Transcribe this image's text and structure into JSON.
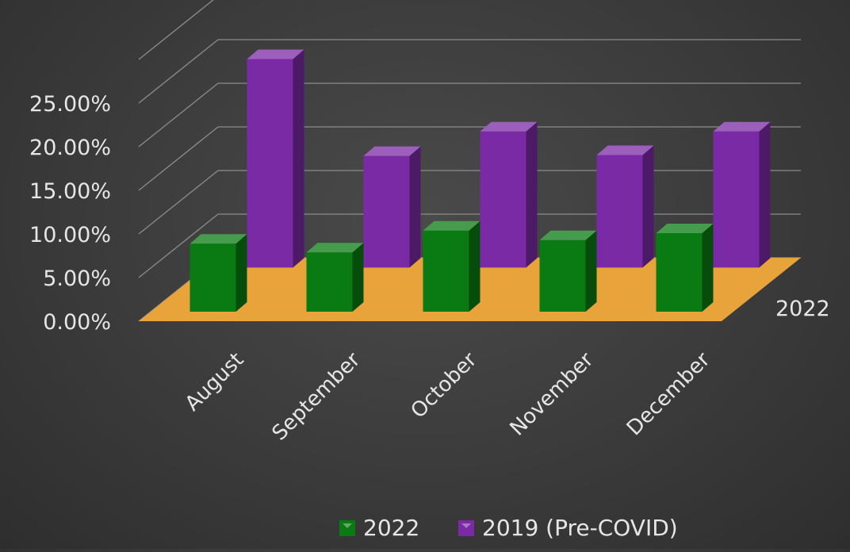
{
  "chart_data": {
    "type": "bar",
    "subtype": "3d-column",
    "categories": [
      "August",
      "September",
      "October",
      "November",
      "December"
    ],
    "series": [
      {
        "name": "2022",
        "values": [
          7.8,
          6.8,
          9.3,
          8.2,
          9.0
        ],
        "color": "#0a7a12"
      },
      {
        "name": "2019  (Pre-COVID)",
        "values": [
          23.9,
          12.8,
          15.6,
          12.9,
          15.6
        ],
        "color": "#7b2aa6"
      }
    ],
    "y_ticks": [
      "0.00%",
      "5.00%",
      "10.00%",
      "15.00%",
      "20.00%",
      "25.00%"
    ],
    "ylim": [
      0,
      30
    ],
    "depth_axis_label": "2022",
    "floor_color": "#e8a43a",
    "background": "#3f3f3f",
    "grid": true,
    "legend_position": "bottom"
  }
}
